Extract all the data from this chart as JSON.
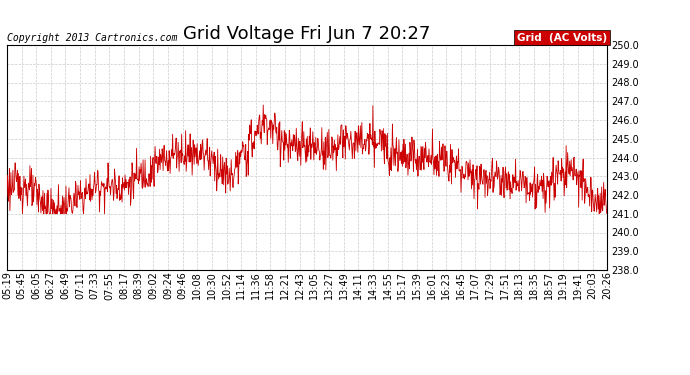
{
  "title": "Grid Voltage Fri Jun 7 20:27",
  "copyright": "Copyright 2013 Cartronics.com",
  "legend_label": "Grid  (AC Volts)",
  "ylim": [
    238.0,
    250.0
  ],
  "yticks": [
    238.0,
    239.0,
    240.0,
    241.0,
    242.0,
    243.0,
    244.0,
    245.0,
    246.0,
    247.0,
    248.0,
    249.0,
    250.0
  ],
  "xtick_labels": [
    "05:19",
    "05:45",
    "06:05",
    "06:27",
    "06:49",
    "07:11",
    "07:33",
    "07:55",
    "08:17",
    "08:39",
    "09:02",
    "09:24",
    "09:46",
    "10:08",
    "10:30",
    "10:52",
    "11:14",
    "11:36",
    "11:58",
    "12:21",
    "12:43",
    "13:05",
    "13:27",
    "13:49",
    "14:11",
    "14:33",
    "14:55",
    "15:17",
    "15:39",
    "16:01",
    "16:23",
    "16:45",
    "17:07",
    "17:29",
    "17:51",
    "18:13",
    "18:35",
    "18:57",
    "19:19",
    "19:41",
    "20:03",
    "20:26"
  ],
  "line_color": "#cc0000",
  "background_color": "#ffffff",
  "grid_color": "#cccccc",
  "title_fontsize": 13,
  "tick_fontsize": 7,
  "legend_bg": "#cc0000",
  "legend_text_color": "#ffffff",
  "figsize": [
    6.9,
    3.75
  ],
  "dpi": 100
}
